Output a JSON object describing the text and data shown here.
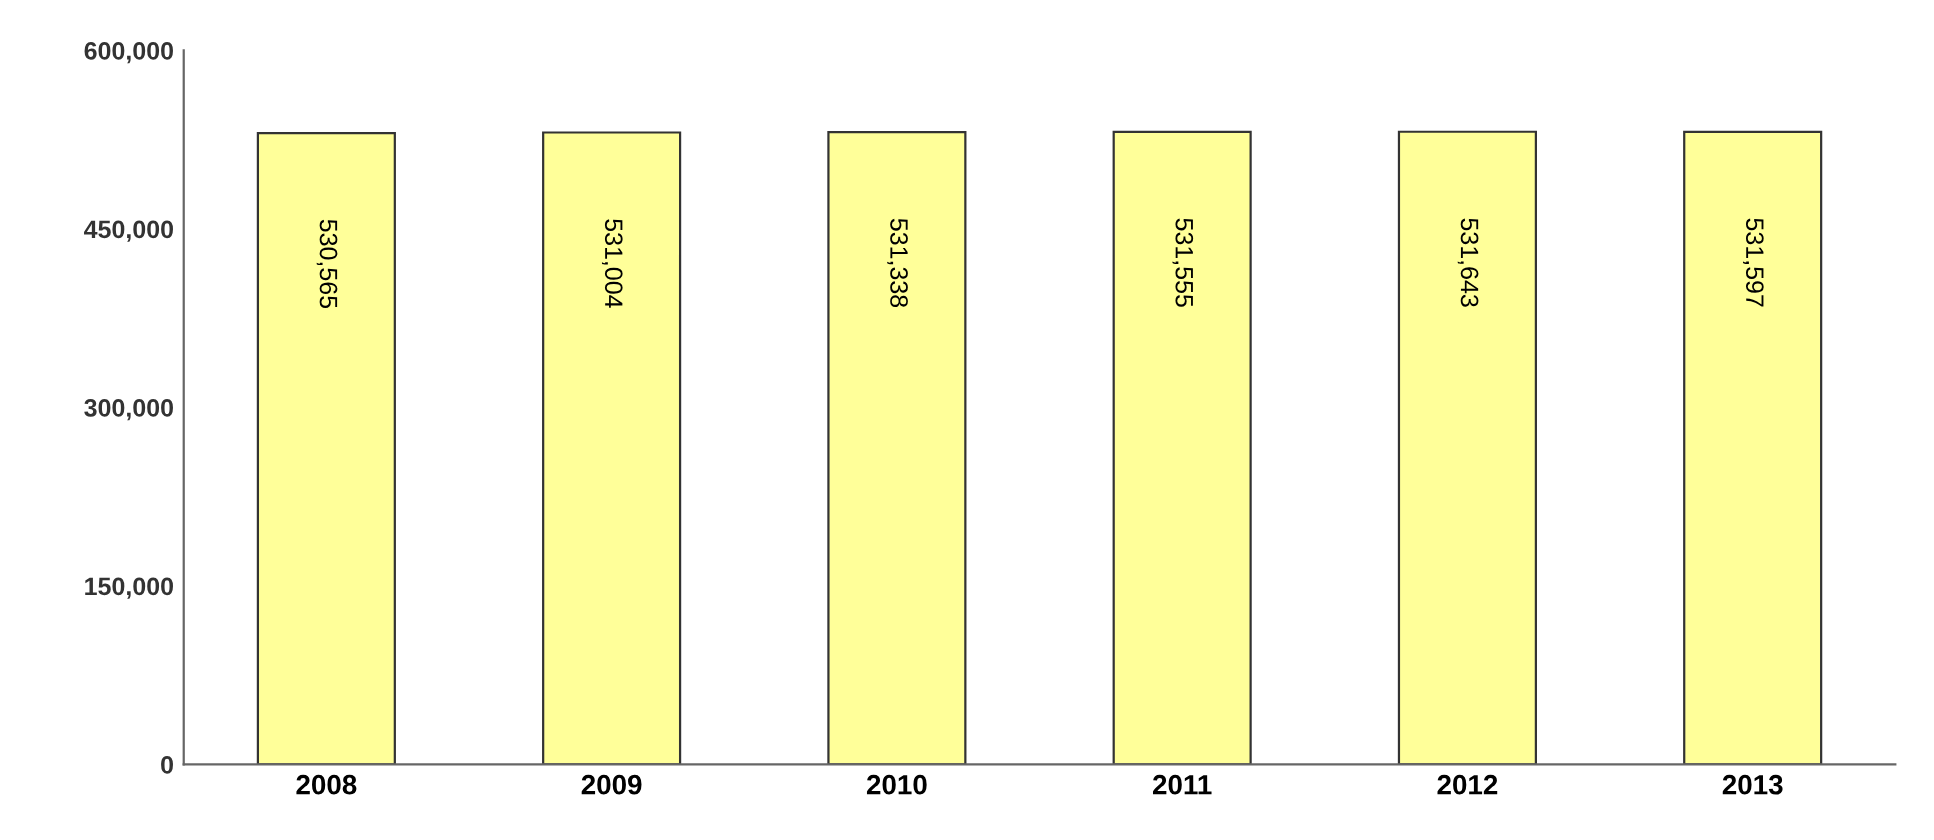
{
  "chart_data": {
    "type": "bar",
    "categories": [
      "2008",
      "2009",
      "2010",
      "2011",
      "2012",
      "2013"
    ],
    "values": [
      530565,
      531004,
      531338,
      531555,
      531643,
      531597
    ],
    "value_labels": [
      "530,565",
      "531,004",
      "531,338",
      "531,555",
      "531,643",
      "531,597"
    ],
    "color": "#ffff99",
    "ylim": [
      0,
      600000
    ],
    "yticks": [
      {
        "value": 0,
        "label": "0"
      },
      {
        "value": 150000,
        "label": "150,000"
      },
      {
        "value": 300000,
        "label": "300,000"
      },
      {
        "value": 450000,
        "label": "450,000"
      },
      {
        "value": 600000,
        "label": "600,000"
      }
    ],
    "grid": false,
    "legend": false
  }
}
